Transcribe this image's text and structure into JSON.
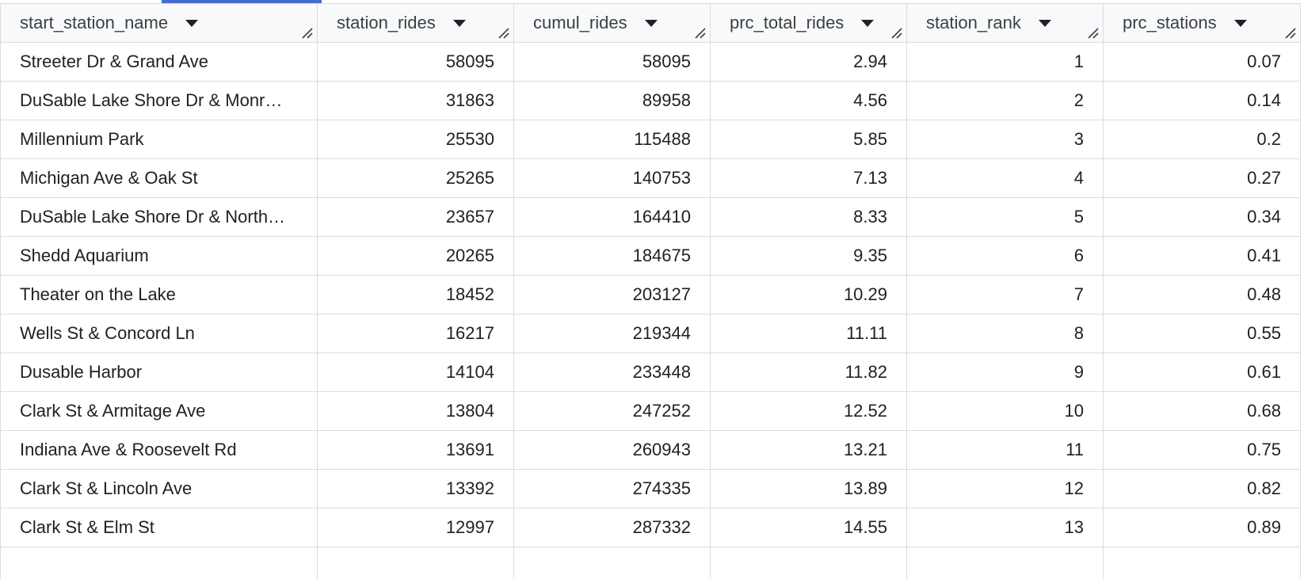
{
  "columns": [
    {
      "label": "start_station_name",
      "align": "left"
    },
    {
      "label": "station_rides",
      "align": "right"
    },
    {
      "label": "cumul_rides",
      "align": "right"
    },
    {
      "label": "prc_total_rides",
      "align": "right"
    },
    {
      "label": "station_rank",
      "align": "right"
    },
    {
      "label": "prc_stations",
      "align": "right"
    }
  ],
  "rows": [
    [
      "Streeter Dr & Grand Ave",
      "58095",
      "58095",
      "2.94",
      "1",
      "0.07"
    ],
    [
      "DuSable Lake Shore Dr & Monr…",
      "31863",
      "89958",
      "4.56",
      "2",
      "0.14"
    ],
    [
      "Millennium Park",
      "25530",
      "115488",
      "5.85",
      "3",
      "0.2"
    ],
    [
      "Michigan Ave & Oak St",
      "25265",
      "140753",
      "7.13",
      "4",
      "0.27"
    ],
    [
      "DuSable Lake Shore Dr & North…",
      "23657",
      "164410",
      "8.33",
      "5",
      "0.34"
    ],
    [
      "Shedd Aquarium",
      "20265",
      "184675",
      "9.35",
      "6",
      "0.41"
    ],
    [
      "Theater on the Lake",
      "18452",
      "203127",
      "10.29",
      "7",
      "0.48"
    ],
    [
      "Wells St & Concord Ln",
      "16217",
      "219344",
      "11.11",
      "8",
      "0.55"
    ],
    [
      "Dusable Harbor",
      "14104",
      "233448",
      "11.82",
      "9",
      "0.61"
    ],
    [
      "Clark St & Armitage Ave",
      "13804",
      "247252",
      "12.52",
      "10",
      "0.68"
    ],
    [
      "Indiana Ave & Roosevelt Rd",
      "13691",
      "260943",
      "13.21",
      "11",
      "0.75"
    ],
    [
      "Clark St & Lincoln Ave",
      "13392",
      "274335",
      "13.89",
      "12",
      "0.82"
    ],
    [
      "Clark St & Elm St",
      "12997",
      "287332",
      "14.55",
      "13",
      "0.89"
    ]
  ],
  "icons": {
    "sort": "sort-dropdown-icon",
    "resize": "column-resize-icon"
  },
  "colors": {
    "tab_accent": "#3b6fe0",
    "header_bg": "#f8f9fa",
    "grid_line": "#dadce0"
  }
}
